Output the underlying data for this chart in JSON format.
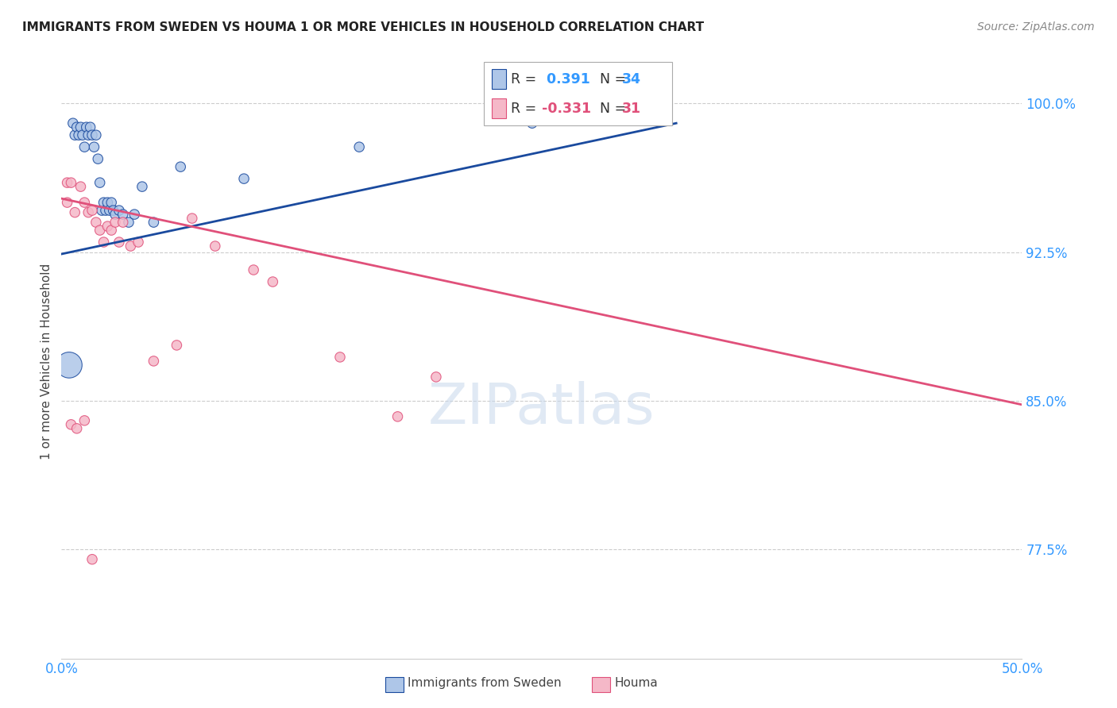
{
  "title": "IMMIGRANTS FROM SWEDEN VS HOUMA 1 OR MORE VEHICLES IN HOUSEHOLD CORRELATION CHART",
  "source": "Source: ZipAtlas.com",
  "ylabel": "1 or more Vehicles in Household",
  "xlim": [
    0.0,
    0.5
  ],
  "ylim": [
    0.72,
    1.02
  ],
  "yticks": [
    0.775,
    0.85,
    0.925,
    1.0
  ],
  "ytick_labels": [
    "77.5%",
    "85.0%",
    "92.5%",
    "100.0%"
  ],
  "xticks": [
    0.0,
    0.1,
    0.2,
    0.3,
    0.4,
    0.5
  ],
  "xtick_labels": [
    "0.0%",
    "",
    "",
    "",
    "",
    "50.0%"
  ],
  "R_blue": 0.391,
  "N_blue": 34,
  "R_pink": -0.331,
  "N_pink": 31,
  "blue_color": "#aec6e8",
  "pink_color": "#f5b8c8",
  "blue_line_color": "#1a4a9e",
  "pink_line_color": "#e0507a",
  "watermark_text": "ZIPatlas",
  "blue_scatter_x": [
    0.004,
    0.006,
    0.007,
    0.008,
    0.009,
    0.01,
    0.011,
    0.012,
    0.013,
    0.014,
    0.015,
    0.016,
    0.017,
    0.018,
    0.019,
    0.02,
    0.021,
    0.022,
    0.023,
    0.024,
    0.025,
    0.026,
    0.027,
    0.028,
    0.03,
    0.032,
    0.035,
    0.038,
    0.042,
    0.048,
    0.062,
    0.095,
    0.155,
    0.245
  ],
  "blue_scatter_y": [
    0.868,
    0.99,
    0.984,
    0.988,
    0.984,
    0.988,
    0.984,
    0.978,
    0.988,
    0.984,
    0.988,
    0.984,
    0.978,
    0.984,
    0.972,
    0.96,
    0.946,
    0.95,
    0.946,
    0.95,
    0.946,
    0.95,
    0.946,
    0.944,
    0.946,
    0.944,
    0.94,
    0.944,
    0.958,
    0.94,
    0.968,
    0.962,
    0.978,
    0.99
  ],
  "blue_scatter_size": [
    550,
    80,
    80,
    80,
    80,
    80,
    80,
    80,
    80,
    80,
    80,
    80,
    80,
    80,
    80,
    80,
    80,
    80,
    80,
    80,
    80,
    80,
    80,
    80,
    80,
    80,
    80,
    80,
    80,
    80,
    80,
    80,
    80,
    80
  ],
  "pink_scatter_x": [
    0.003,
    0.005,
    0.007,
    0.01,
    0.012,
    0.014,
    0.016,
    0.018,
    0.02,
    0.022,
    0.024,
    0.026,
    0.028,
    0.03,
    0.032,
    0.036,
    0.04,
    0.048,
    0.06,
    0.068,
    0.08,
    0.1,
    0.11,
    0.145,
    0.175,
    0.195,
    0.005,
    0.008,
    0.012,
    0.016,
    0.003
  ],
  "pink_scatter_y": [
    0.96,
    0.96,
    0.945,
    0.958,
    0.95,
    0.945,
    0.946,
    0.94,
    0.936,
    0.93,
    0.938,
    0.936,
    0.94,
    0.93,
    0.94,
    0.928,
    0.93,
    0.87,
    0.878,
    0.942,
    0.928,
    0.916,
    0.91,
    0.872,
    0.842,
    0.862,
    0.838,
    0.836,
    0.84,
    0.77,
    0.95
  ],
  "pink_scatter_size": [
    80,
    80,
    80,
    80,
    80,
    80,
    80,
    80,
    80,
    80,
    80,
    80,
    80,
    80,
    80,
    80,
    80,
    80,
    80,
    80,
    80,
    80,
    80,
    80,
    80,
    80,
    80,
    80,
    80,
    80,
    80
  ],
  "blue_trendline_x": [
    0.0,
    0.32
  ],
  "blue_trendline_y": [
    0.924,
    0.99
  ],
  "pink_trendline_x": [
    0.0,
    0.5
  ],
  "pink_trendline_y": [
    0.952,
    0.848
  ]
}
